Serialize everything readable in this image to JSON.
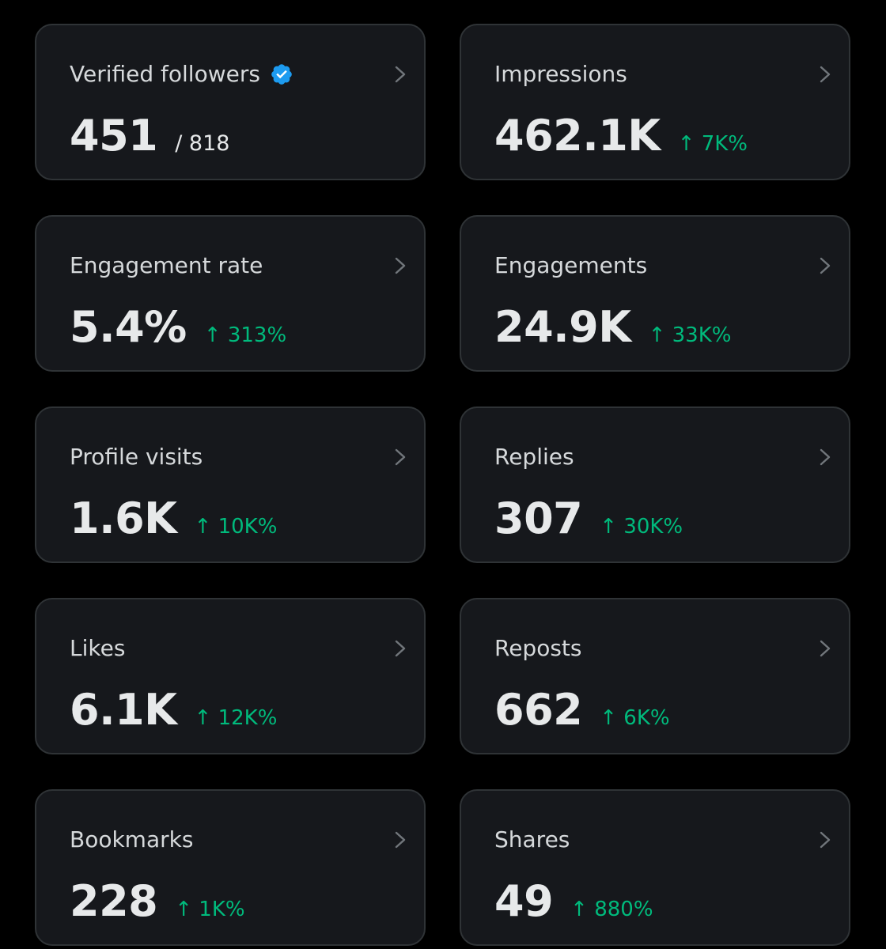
{
  "colors": {
    "background": "#000000",
    "card_background": "#16181c",
    "card_border": "#2f3336",
    "positive_change": "#00ba7c",
    "verified_badge": "#1d9bf0"
  },
  "icons": {
    "verified": "verified-badge-icon",
    "chevron": "chevron-right-icon"
  },
  "cards": [
    {
      "label": "Verified followers",
      "value": "451",
      "total": "/ 818"
    },
    {
      "label": "Impressions",
      "value": "462.1K",
      "change": "↑ 7K%"
    },
    {
      "label": "Engagement rate",
      "value": "5.4%",
      "change": "↑ 313%"
    },
    {
      "label": "Engagements",
      "value": "24.9K",
      "change": "↑ 33K%"
    },
    {
      "label": "Profile visits",
      "value": "1.6K",
      "change": "↑ 10K%"
    },
    {
      "label": "Replies",
      "value": "307",
      "change": "↑ 30K%"
    },
    {
      "label": "Likes",
      "value": "6.1K",
      "change": "↑ 12K%"
    },
    {
      "label": "Reposts",
      "value": "662",
      "change": "↑ 6K%"
    },
    {
      "label": "Bookmarks",
      "value": "228",
      "change": "↑ 1K%"
    },
    {
      "label": "Shares",
      "value": "49",
      "change": "↑ 880%"
    }
  ]
}
